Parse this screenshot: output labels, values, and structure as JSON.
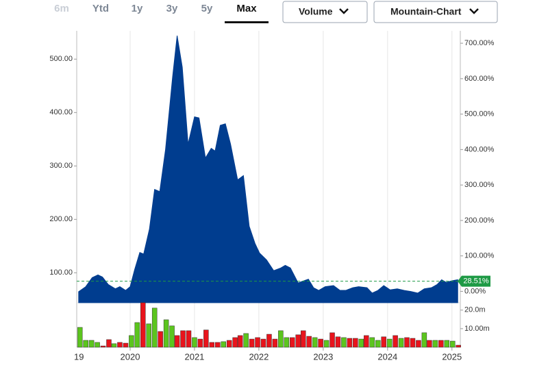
{
  "toolbar": {
    "tabs": [
      "6m",
      "Ytd",
      "1y",
      "3y",
      "5y",
      "Max"
    ],
    "disabled_tab": 0,
    "selected_tab": 5,
    "dropdowns": [
      "Volume",
      "Mountain-Chart"
    ]
  },
  "chart_data": [
    {
      "type": "area",
      "x": [
        2019.2,
        2019.31,
        2019.41,
        2019.5,
        2019.57,
        2019.66,
        2019.77,
        2019.84,
        2019.93,
        2020.0,
        2020.07,
        2020.15,
        2020.21,
        2020.3,
        2020.38,
        2020.46,
        2020.55,
        2020.66,
        2020.73,
        2020.81,
        2020.9,
        2021.0,
        2021.07,
        2021.17,
        2021.26,
        2021.32,
        2021.4,
        2021.48,
        2021.56,
        2021.67,
        2021.76,
        2021.85,
        2021.94,
        2022.01,
        2022.12,
        2022.23,
        2022.34,
        2022.41,
        2022.49,
        2022.61,
        2022.7,
        2022.77,
        2022.85,
        2022.93,
        2023.03,
        2023.16,
        2023.26,
        2023.35,
        2023.46,
        2023.55,
        2023.68,
        2023.76,
        2023.85,
        2023.94,
        2024.04,
        2024.15,
        2024.26,
        2024.36,
        2024.47,
        2024.57,
        2024.68,
        2024.77,
        2024.84,
        2024.91,
        2025.0,
        2025.09
      ],
      "series": [
        {
          "color": "#003d8f",
          "values": [
            64.7,
            74,
            91,
            96,
            92,
            78,
            70,
            74,
            67,
            74,
            106,
            138,
            135,
            182,
            256,
            252,
            331,
            467,
            544,
            485,
            341,
            392,
            390,
            315,
            333,
            328,
            376,
            379,
            341,
            274,
            282,
            187,
            155,
            137,
            124,
            104,
            109,
            114,
            109,
            81,
            85,
            88,
            72,
            67,
            74,
            76,
            67,
            67,
            72,
            74,
            72,
            62,
            67,
            76,
            68,
            70,
            67,
            65,
            62,
            70,
            72,
            78,
            87,
            82,
            85,
            87
          ]
        }
      ],
      "xlim": [
        2019.17,
        2025.13
      ],
      "ylim": [
        44,
        553
      ],
      "yticks": [
        {
          "value": 100,
          "label": "100.00"
        },
        {
          "value": 200,
          "label": "200.00"
        },
        {
          "value": 300,
          "label": "300.00"
        },
        {
          "value": 400,
          "label": "400.00"
        },
        {
          "value": 500,
          "label": "500.00"
        }
      ],
      "y2lim": [
        -32,
        735
      ],
      "y2ticks": [
        {
          "value": 0,
          "label": "0.00%"
        },
        {
          "value": 100,
          "label": "100.00%"
        },
        {
          "value": 200,
          "label": "200.00%"
        },
        {
          "value": 300,
          "label": "300.00%"
        },
        {
          "value": 400,
          "label": "400.00%"
        },
        {
          "value": 500,
          "label": "500.00%"
        },
        {
          "value": 600,
          "label": "600.00%"
        },
        {
          "value": 700,
          "label": "700.00%"
        }
      ],
      "reference": {
        "value": 28.51,
        "label": "28.51%",
        "axis": "y2",
        "color": "#1e9a45"
      },
      "grid": "x"
    },
    {
      "type": "bar",
      "x": [
        2019.22,
        2019.31,
        2019.4,
        2019.49,
        2019.58,
        2019.67,
        2019.75,
        2019.84,
        2019.93,
        2020.02,
        2020.11,
        2020.2,
        2020.29,
        2020.38,
        2020.47,
        2020.56,
        2020.65,
        2020.73,
        2020.82,
        2020.91,
        2021.0,
        2021.09,
        2021.18,
        2021.27,
        2021.36,
        2021.45,
        2021.54,
        2021.63,
        2021.71,
        2021.8,
        2021.89,
        2021.98,
        2022.07,
        2022.16,
        2022.25,
        2022.34,
        2022.43,
        2022.52,
        2022.61,
        2022.69,
        2022.78,
        2022.87,
        2022.96,
        2023.05,
        2023.14,
        2023.23,
        2023.32,
        2023.41,
        2023.5,
        2023.59,
        2023.67,
        2023.76,
        2023.85,
        2023.94,
        2024.03,
        2024.12,
        2024.21,
        2024.3,
        2024.39,
        2024.48,
        2024.57,
        2024.65,
        2024.74,
        2024.83,
        2024.92,
        2025.01,
        2025.1
      ],
      "series": [
        {
          "values": [
            10.7,
            3.7,
            3.7,
            2.6,
            0.7,
            4.1,
            1.9,
            2.6,
            2.2,
            6.3,
            13.3,
            24,
            12.6,
            21.1,
            8.5,
            14.8,
            11.5,
            6.3,
            8.9,
            8.9,
            5.2,
            4.4,
            9.3,
            2.6,
            2.6,
            3.0,
            3.7,
            5.2,
            6.3,
            7.4,
            4.4,
            5.2,
            4.4,
            7.0,
            4.4,
            8.9,
            5.2,
            5.2,
            6.7,
            8.9,
            5.9,
            5.2,
            4.4,
            3.7,
            7.8,
            5.6,
            5.2,
            4.8,
            4.8,
            4.4,
            6.3,
            5.2,
            3.7,
            5.6,
            4.4,
            6.3,
            4.8,
            5.2,
            4.8,
            3.7,
            7.8,
            3.7,
            3.7,
            3.7,
            3.7,
            3.3,
            1.1
          ],
          "colors": [
            "#5cc51e",
            "#5cc51e",
            "#5cc51e",
            "#5cc51e",
            "#e8141c",
            "#e8141c",
            "#5cc51e",
            "#e8141c",
            "#e8141c",
            "#5cc51e",
            "#5cc51e",
            "#e8141c",
            "#5cc51e",
            "#5cc51e",
            "#e8141c",
            "#5cc51e",
            "#5cc51e",
            "#e8141c",
            "#e8141c",
            "#e8141c",
            "#5cc51e",
            "#e8141c",
            "#e8141c",
            "#e8141c",
            "#e8141c",
            "#5cc51e",
            "#e8141c",
            "#e8141c",
            "#e8141c",
            "#5cc51e",
            "#e8141c",
            "#e8141c",
            "#e8141c",
            "#e8141c",
            "#e8141c",
            "#5cc51e",
            "#5cc51e",
            "#e8141c",
            "#e8141c",
            "#e8141c",
            "#e8141c",
            "#5cc51e",
            "#e8141c",
            "#5cc51e",
            "#e8141c",
            "#e8141c",
            "#5cc51e",
            "#e8141c",
            "#e8141c",
            "#5cc51e",
            "#e8141c",
            "#5cc51e",
            "#5cc51e",
            "#e8141c",
            "#5cc51e",
            "#e8141c",
            "#5cc51e",
            "#e8141c",
            "#e8141c",
            "#e8141c",
            "#5cc51e",
            "#e8141c",
            "#5cc51e",
            "#e8141c",
            "#5cc51e",
            "#5cc51e",
            "#e8141c"
          ]
        }
      ],
      "xlim": [
        2019.17,
        2025.13
      ],
      "xticks": [
        {
          "value": 2019,
          "label": "19"
        },
        2020,
        2021,
        2022,
        2023,
        2024,
        2025
      ],
      "ylim": [
        0,
        24
      ],
      "y2ticks": [
        {
          "value": 10,
          "label": "10.00m"
        },
        {
          "value": 20,
          "label": "20.0m"
        }
      ]
    }
  ]
}
